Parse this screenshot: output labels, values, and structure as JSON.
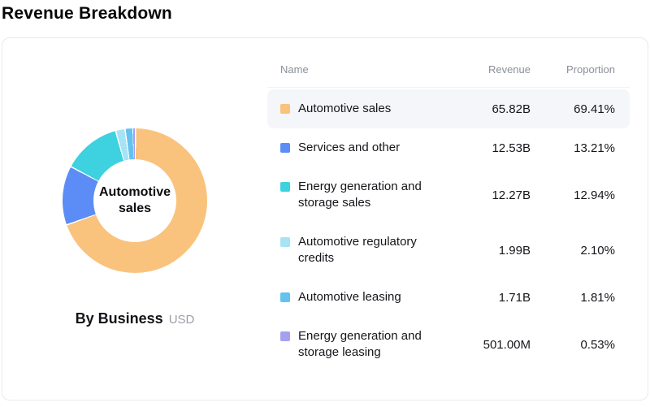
{
  "page": {
    "title": "Revenue Breakdown"
  },
  "chart": {
    "center_label": "Automotive sales",
    "caption": "By Business",
    "unit": "USD"
  },
  "table": {
    "columns": [
      "Name",
      "Revenue",
      "Proportion"
    ]
  },
  "chart_data": {
    "type": "pie",
    "donut": true,
    "title": "Revenue Breakdown",
    "caption": "By Business",
    "unit": "USD",
    "legend_position": "right-table",
    "center_label": "Automotive sales",
    "labels": [
      "Automotive sales",
      "Services and other",
      "Energy generation and storage sales",
      "Automotive regulatory credits",
      "Automotive leasing",
      "Energy generation and storage leasing"
    ],
    "revenues": [
      "65.82B",
      "12.53B",
      "12.27B",
      "1.99B",
      "1.71B",
      "501.00M"
    ],
    "proportions": [
      "69.41%",
      "13.21%",
      "12.94%",
      "2.10%",
      "1.81%",
      "0.53%"
    ],
    "values": [
      69.41,
      13.21,
      12.94,
      2.1,
      1.81,
      0.53
    ],
    "colors": [
      "#f9c37d",
      "#5c8df6",
      "#3ed1e0",
      "#a7e3f4",
      "#63c2ef",
      "#a5a1f0"
    ],
    "highlighted_index": 0,
    "highlight_color": "#f4f6f9"
  }
}
